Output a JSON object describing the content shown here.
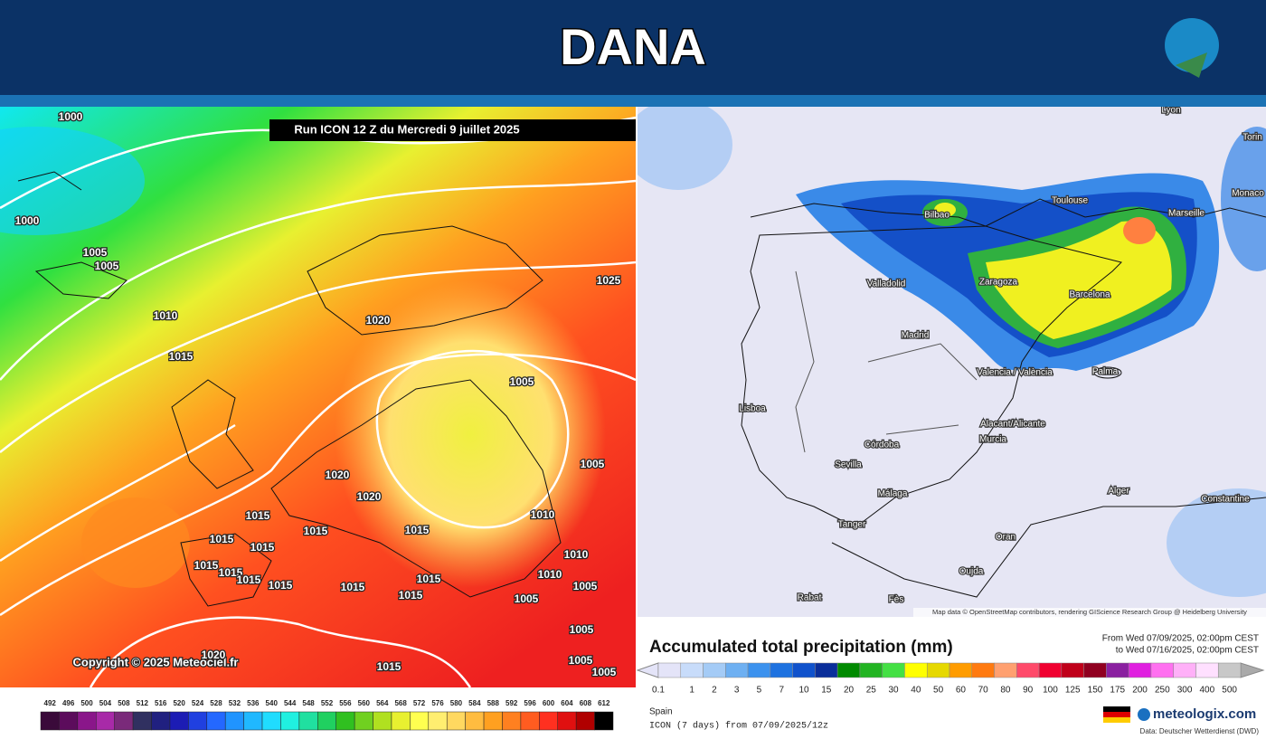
{
  "header": {
    "title": "DANA"
  },
  "left_map": {
    "run_label": "Run ICON 12 Z du Mercredi 9 juillet 2025",
    "copyright": "Copyright © 2025 Meteociel.fr",
    "isobar_labels": [
      1000,
      1000,
      1005,
      1005,
      1010,
      1015,
      1020,
      1025,
      1005,
      1005,
      1020,
      1020,
      1010,
      1015,
      1015,
      1015,
      1015,
      1015,
      1015,
      1015,
      1015,
      1015,
      1015,
      1015,
      1015,
      1010,
      1010,
      1005,
      1005,
      1005,
      1005,
      1005,
      1015,
      1020
    ],
    "colorbar": {
      "labels": [
        492,
        496,
        500,
        504,
        508,
        512,
        516,
        520,
        524,
        528,
        532,
        536,
        540,
        544,
        548,
        552,
        556,
        560,
        564,
        568,
        572,
        576,
        580,
        584,
        588,
        592,
        596,
        600,
        604,
        608,
        612
      ],
      "colors": [
        "#3a0a3a",
        "#5c0c5c",
        "#8a168a",
        "#a82aa8",
        "#7a2a7a",
        "#303060",
        "#202080",
        "#1c1cb4",
        "#2040e0",
        "#2468ff",
        "#2094ff",
        "#20b8ff",
        "#20dcff",
        "#20f0e0",
        "#20e0a0",
        "#20d060",
        "#30c020",
        "#70d020",
        "#b0e020",
        "#e8f030",
        "#ffff50",
        "#ffee70",
        "#ffd860",
        "#ffbc40",
        "#ffa020",
        "#ff8020",
        "#ff5c20",
        "#ff3020",
        "#e01010",
        "#b00000",
        "#000000"
      ]
    }
  },
  "right_map": {
    "cities": [
      "Lyon",
      "Torin",
      "Monaco",
      "Toulouse",
      "Marseille",
      "Bilbao",
      "Zaragoza",
      "Barcelona",
      "Valladolid",
      "Madrid",
      "Valencia / València",
      "Palma",
      "Lisboa",
      "Alacant/Alicante",
      "Murcia",
      "Córdoba",
      "Sevilla",
      "Málaga",
      "Tanger",
      "Alger",
      "Constantine",
      "Oran",
      "Oujda",
      "Rabat",
      "Fès"
    ],
    "attribution": "Map data © OpenStreetMap contributors, rendering GIScience Research Group @ Heidelberg University"
  },
  "legend": {
    "title": "Accumulated total precipitation (mm)",
    "period_from": "From Wed 07/09/2025, 02:00pm CEST",
    "period_to": "to Wed 07/16/2025, 02:00pm CEST",
    "scale_labels": [
      0.1,
      1,
      2,
      3,
      5,
      7,
      10,
      15,
      20,
      25,
      30,
      40,
      50,
      60,
      70,
      80,
      90,
      100,
      125,
      150,
      175,
      200,
      250,
      300,
      400,
      500
    ],
    "colors": [
      "#e4e4f8",
      "#c8dcfa",
      "#a4cbf6",
      "#6eb0f2",
      "#3c92ee",
      "#1e72e0",
      "#1052cc",
      "#0a2e9a",
      "#008a00",
      "#22b422",
      "#44e044",
      "#ffff00",
      "#e6d800",
      "#ff9c00",
      "#ff7a10",
      "#ffa070",
      "#ff4a6a",
      "#f00030",
      "#c0001a",
      "#900020",
      "#8a20a0",
      "#e020e0",
      "#ff70f0",
      "#ffb0f8",
      "#ffe0ff",
      "#c8c8c8"
    ],
    "region": "Spain",
    "model": "ICON (7 days) from 07/09/2025/12z",
    "brand": "meteologix.com",
    "source": "Data: Deutscher Wetterdienst (DWD)"
  }
}
